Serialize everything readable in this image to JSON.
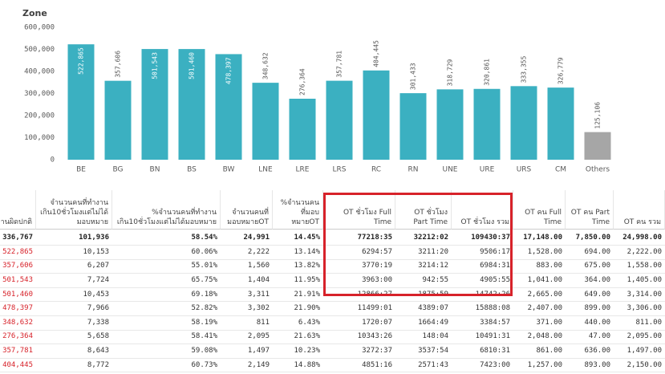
{
  "chart_data": {
    "type": "bar",
    "title": "Zone",
    "categories": [
      "BE",
      "BG",
      "BN",
      "BS",
      "BW",
      "LNE",
      "LRE",
      "LRS",
      "RC",
      "RN",
      "UNE",
      "URE",
      "URS",
      "CM",
      "Others"
    ],
    "values": [
      522865,
      357606,
      501543,
      501460,
      478397,
      348632,
      276364,
      357781,
      404445,
      301433,
      318729,
      320861,
      333355,
      326779,
      125106
    ],
    "value_labels": [
      "522,865",
      "357,606",
      "501,543",
      "501,460",
      "478,397",
      "348,632",
      "276,364",
      "357,781",
      "404,445",
      "301,433",
      "318,729",
      "320,861",
      "333,355",
      "326,779",
      "125,106"
    ],
    "colors": [
      "#3bb0c1",
      "#3bb0c1",
      "#3bb0c1",
      "#3bb0c1",
      "#3bb0c1",
      "#3bb0c1",
      "#3bb0c1",
      "#3bb0c1",
      "#3bb0c1",
      "#3bb0c1",
      "#3bb0c1",
      "#3bb0c1",
      "#3bb0c1",
      "#3bb0c1",
      "#a6a6a6"
    ],
    "ylim": [
      0,
      600000
    ],
    "yticks": [
      0,
      {
        "value": 100000,
        "label": "100,000"
      },
      {
        "value": 200000,
        "label": "200,000"
      },
      {
        "value": 300000,
        "label": "300,000"
      },
      {
        "value": 400000,
        "label": "400,000"
      },
      {
        "value": 500000,
        "label": "500,000"
      },
      {
        "value": 600000,
        "label": "600,000"
      }
    ],
    "grid": false
  },
  "table": {
    "header": [
      "งานผิดปกติ",
      "จำนวนคนที่ทำงานเกิน10ชั่วโมงแต่ไม่ได้มอบหมาย",
      "%จำนวนคนที่ทำงานเกิน10ชั่วโมงแต่ไม่ได้มอบหมาย",
      "จำนวนคนที่มอบหมายOT",
      "%จำนวนคนที่มอบหมายOT",
      "OT ชั่วโมง Full Time",
      "OT ชั่วโมง Part Time",
      "OT ชั่วโมง รวม",
      "OT คน Full Time",
      "OT คน Part Time",
      "OT คน รวม"
    ],
    "total": [
      "336,767",
      "101,936",
      "58.54%",
      "24,991",
      "14.45%",
      "77218:35",
      "32212:02",
      "109430:37",
      "17,148.00",
      "7,850.00",
      "24,998.00"
    ],
    "rows": [
      [
        "522,865",
        "10,153",
        "60.06%",
        "2,222",
        "13.14%",
        "6294:57",
        "3211:20",
        "9506:17",
        "1,528.00",
        "694.00",
        "2,222.00"
      ],
      [
        "357,606",
        "6,207",
        "55.01%",
        "1,560",
        "13.82%",
        "3770:19",
        "3214:12",
        "6984:31",
        "883.00",
        "675.00",
        "1,558.00"
      ],
      [
        "501,543",
        "7,724",
        "65.75%",
        "1,404",
        "11.95%",
        "3963:00",
        "942:55",
        "4905:55",
        "1,041.00",
        "364.00",
        "1,405.00"
      ],
      [
        "501,460",
        "10,453",
        "69.18%",
        "3,311",
        "21.91%",
        "12866:27",
        "1875:59",
        "14742:26",
        "2,665.00",
        "649.00",
        "3,314.00"
      ],
      [
        "478,397",
        "7,966",
        "52.82%",
        "3,302",
        "21.90%",
        "11499:01",
        "4389:07",
        "15888:08",
        "2,407.00",
        "899.00",
        "3,306.00"
      ],
      [
        "348,632",
        "7,338",
        "58.19%",
        "811",
        "6.43%",
        "1720:07",
        "1664:49",
        "3384:57",
        "371.00",
        "440.00",
        "811.00"
      ],
      [
        "276,364",
        "5,658",
        "58.41%",
        "2,095",
        "21.63%",
        "10343:26",
        "148:04",
        "10491:31",
        "2,048.00",
        "47.00",
        "2,095.00"
      ],
      [
        "357,781",
        "8,643",
        "59.08%",
        "1,497",
        "10.23%",
        "3272:37",
        "3537:54",
        "6810:31",
        "861.00",
        "636.00",
        "1,497.00"
      ],
      [
        "404,445",
        "8,772",
        "60.73%",
        "2,149",
        "14.88%",
        "4851:16",
        "2571:43",
        "7423:00",
        "1,257.00",
        "893.00",
        "2,150.00"
      ]
    ]
  }
}
